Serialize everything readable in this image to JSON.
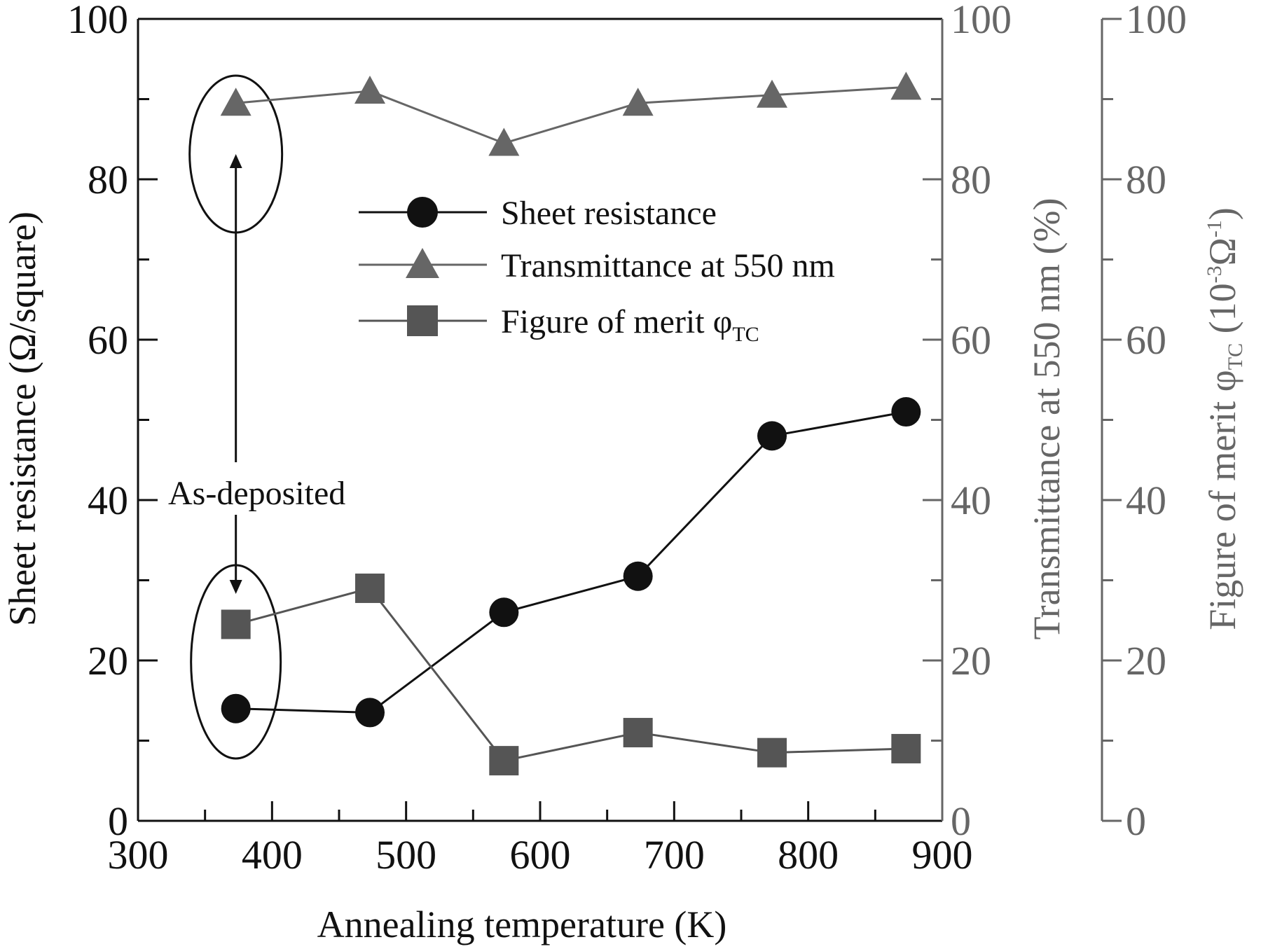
{
  "chart_data": {
    "type": "line",
    "title": "",
    "xlabel": "Annealing temperature (K)",
    "xlim": [
      300,
      900
    ],
    "xticks": [
      300,
      400,
      500,
      600,
      700,
      800,
      900
    ],
    "yticks": [
      0,
      20,
      40,
      60,
      80,
      100
    ],
    "axes": {
      "left": {
        "label_main": "Sheet resistance (Ω/square)",
        "ylim": [
          0,
          100
        ],
        "color": "#111111"
      },
      "right1": {
        "label_main": "Transmittance at 550 nm (%)",
        "ylim": [
          0,
          100
        ],
        "color": "#666666"
      },
      "right2": {
        "label_main": "Figure of merit φ",
        "label_sub": "TC",
        "label_unit_open": " (10",
        "label_unit_sup": "-3",
        "label_unit_mid": "Ω",
        "label_unit_sup2": "-1",
        "label_unit_close": ")",
        "ylim": [
          0,
          100
        ],
        "color": "#666666"
      }
    },
    "x": [
      373,
      473,
      573,
      673,
      773,
      873
    ],
    "series": [
      {
        "name": "Sheet resistance",
        "axis": "left",
        "marker": "circle",
        "color": "#111111",
        "values": [
          14,
          13.5,
          26,
          30.5,
          48,
          51
        ]
      },
      {
        "name": "Transmittance at 550 nm",
        "axis": "right1",
        "marker": "triangle",
        "color": "#666666",
        "values": [
          89.5,
          91,
          84.5,
          89.5,
          90.5,
          91.5
        ]
      },
      {
        "name": "Figure of merit φ",
        "name_sub": "TC",
        "axis": "right2",
        "marker": "square",
        "color": "#555555",
        "values": [
          24.5,
          29,
          7.5,
          11,
          8.5,
          9
        ]
      }
    ],
    "legend_position": "upper-center",
    "annotation": "As-deposited",
    "grid": false
  }
}
